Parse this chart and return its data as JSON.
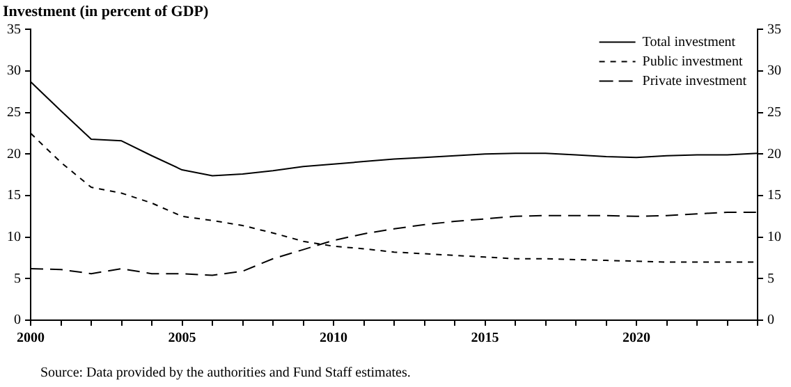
{
  "chart_data": {
    "type": "line",
    "title": "Investment (in percent of GDP)",
    "x": [
      2000,
      2001,
      2002,
      2003,
      2004,
      2005,
      2006,
      2007,
      2008,
      2009,
      2010,
      2011,
      2012,
      2013,
      2014,
      2015,
      2016,
      2017,
      2018,
      2019,
      2020,
      2021,
      2022,
      2023,
      2024
    ],
    "series": [
      {
        "name": "Total investment",
        "color": "#000000",
        "line_style": "solid",
        "values": [
          28.7,
          25.2,
          21.8,
          21.6,
          19.8,
          18.1,
          17.4,
          17.6,
          18.0,
          18.5,
          18.8,
          19.1,
          19.4,
          19.6,
          19.8,
          20.0,
          20.1,
          20.1,
          19.9,
          19.7,
          19.6,
          19.8,
          19.9,
          19.9,
          20.1
        ]
      },
      {
        "name": "Public investment",
        "color": "#000000",
        "line_style": "dashed",
        "values": [
          22.5,
          19.0,
          16.0,
          15.3,
          14.1,
          12.5,
          12.0,
          11.4,
          10.5,
          9.5,
          8.9,
          8.6,
          8.2,
          8.0,
          7.8,
          7.6,
          7.4,
          7.4,
          7.3,
          7.2,
          7.1,
          7.0,
          7.0,
          7.0,
          7.0
        ]
      },
      {
        "name": "Private investment",
        "color": "#000000",
        "line_style": "dashed",
        "values": [
          6.2,
          6.1,
          5.6,
          6.2,
          5.6,
          5.6,
          5.4,
          5.9,
          7.4,
          8.5,
          9.6,
          10.4,
          11.0,
          11.5,
          11.9,
          12.2,
          12.5,
          12.6,
          12.6,
          12.6,
          12.5,
          12.6,
          12.8,
          13.0,
          13.0
        ]
      }
    ],
    "xlim": [
      2000,
      2024
    ],
    "xticks": [
      2000,
      {
        "value": 2001,
        "label": null
      },
      {
        "value": 2002,
        "label": null
      },
      {
        "value": 2003,
        "label": null
      },
      {
        "value": 2004,
        "label": null
      },
      2005,
      {
        "value": 2006,
        "label": null
      },
      {
        "value": 2007,
        "label": null
      },
      {
        "value": 2008,
        "label": null
      },
      {
        "value": 2009,
        "label": null
      },
      2010,
      {
        "value": 2011,
        "label": null
      },
      {
        "value": 2012,
        "label": null
      },
      {
        "value": 2013,
        "label": null
      },
      {
        "value": 2014,
        "label": null
      },
      2015,
      {
        "value": 2016,
        "label": null
      },
      {
        "value": 2017,
        "label": null
      },
      {
        "value": 2018,
        "label": null
      },
      {
        "value": 2019,
        "label": null
      },
      2020,
      {
        "value": 2021,
        "label": null
      },
      {
        "value": 2022,
        "label": null
      },
      {
        "value": 2023,
        "label": null
      },
      {
        "value": 2024,
        "label": null
      }
    ],
    "ylim": [
      0,
      35
    ],
    "yticks": [
      0,
      5,
      10,
      15,
      20,
      25,
      30,
      35
    ],
    "y2lim": [
      0,
      35
    ],
    "y2ticks": [
      0,
      5,
      10,
      15,
      20,
      25,
      30,
      35
    ],
    "grid": false,
    "legend": "top right",
    "marker": "none",
    "annotations": [
      "Source: Data provided by the authorities and Fund Staff estimates."
    ]
  }
}
